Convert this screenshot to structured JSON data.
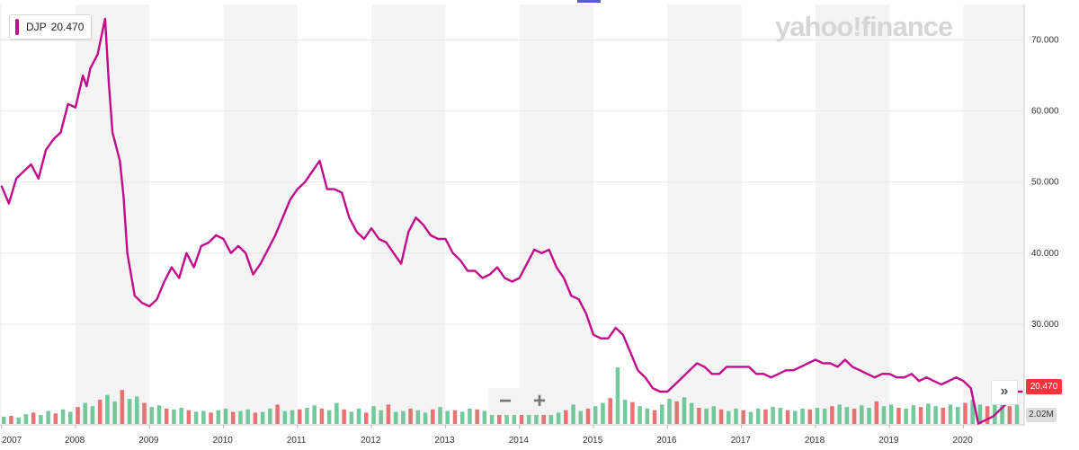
{
  "legend": {
    "symbol": "DJP",
    "value": "20.470",
    "color": "#c20a8c"
  },
  "brand": {
    "text": "yahoo!finance"
  },
  "zoom": {
    "minus": "−",
    "plus": "+"
  },
  "price_label": "20.470",
  "volume_label": "2.02M",
  "scroll_button": "»",
  "chart_data": {
    "type": "line",
    "title": "",
    "xlabel": "",
    "ylabel": "",
    "ylim": [
      20.0,
      75.0
    ],
    "xlim": [
      2006.98,
      2020.82
    ],
    "x_ticks": [
      2007,
      2008,
      2009,
      2010,
      2011,
      2012,
      2013,
      2014,
      2015,
      2016,
      2017,
      2018,
      2019,
      2020
    ],
    "x_tick_labels": [
      "2007",
      "2008",
      "2009",
      "2010",
      "2011",
      "2012",
      "2013",
      "2014",
      "2015",
      "2016",
      "2017",
      "2018",
      "2019",
      "2020"
    ],
    "y_ticks": [
      30,
      40,
      50,
      60,
      70
    ],
    "y_tick_labels": [
      "30.000",
      "40.000",
      "50.000",
      "60.000",
      "70.000"
    ],
    "grid": true,
    "legend_position": "top-left",
    "series": [
      {
        "name": "DJP",
        "color": "#c20a8c",
        "x": [
          2007.0,
          2007.1,
          2007.2,
          2007.3,
          2007.4,
          2007.5,
          2007.6,
          2007.7,
          2007.8,
          2007.9,
          2008.0,
          2008.1,
          2008.15,
          2008.2,
          2008.3,
          2008.4,
          2008.45,
          2008.5,
          2008.6,
          2008.65,
          2008.7,
          2008.8,
          2008.9,
          2009.0,
          2009.1,
          2009.2,
          2009.3,
          2009.4,
          2009.5,
          2009.6,
          2009.7,
          2009.8,
          2009.9,
          2010.0,
          2010.1,
          2010.2,
          2010.3,
          2010.4,
          2010.5,
          2010.6,
          2010.7,
          2010.8,
          2010.9,
          2011.0,
          2011.1,
          2011.2,
          2011.3,
          2011.4,
          2011.5,
          2011.6,
          2011.7,
          2011.8,
          2011.9,
          2012.0,
          2012.1,
          2012.2,
          2012.3,
          2012.4,
          2012.5,
          2012.6,
          2012.7,
          2012.8,
          2012.9,
          2013.0,
          2013.1,
          2013.2,
          2013.3,
          2013.4,
          2013.5,
          2013.6,
          2013.7,
          2013.8,
          2013.9,
          2014.0,
          2014.1,
          2014.2,
          2014.3,
          2014.4,
          2014.5,
          2014.6,
          2014.7,
          2014.8,
          2014.9,
          2015.0,
          2015.1,
          2015.2,
          2015.3,
          2015.4,
          2015.5,
          2015.6,
          2015.7,
          2015.8,
          2015.9,
          2016.0,
          2016.1,
          2016.2,
          2016.3,
          2016.4,
          2016.5,
          2016.6,
          2016.7,
          2016.8,
          2016.9,
          2017.0,
          2017.1,
          2017.2,
          2017.3,
          2017.4,
          2017.5,
          2017.6,
          2017.7,
          2017.8,
          2017.9,
          2018.0,
          2018.1,
          2018.2,
          2018.3,
          2018.4,
          2018.5,
          2018.6,
          2018.7,
          2018.8,
          2018.9,
          2019.0,
          2019.1,
          2019.2,
          2019.3,
          2019.4,
          2019.5,
          2019.6,
          2019.7,
          2019.8,
          2019.9,
          2020.0,
          2020.1,
          2020.15,
          2020.2,
          2020.3,
          2020.4,
          2020.5,
          2020.6,
          2020.7,
          2020.8
        ],
        "y": [
          49.5,
          47.0,
          50.5,
          51.5,
          52.5,
          50.5,
          54.5,
          56.0,
          57.0,
          61.0,
          60.5,
          65.0,
          63.5,
          66.0,
          68.0,
          73.0,
          64.0,
          57.0,
          53.0,
          48.0,
          40.0,
          34.0,
          33.0,
          32.5,
          33.5,
          36.0,
          38.0,
          36.5,
          40.0,
          38.0,
          41.0,
          41.5,
          42.5,
          42.0,
          40.0,
          41.0,
          40.0,
          37.0,
          38.5,
          40.5,
          42.5,
          45.0,
          47.5,
          49.0,
          50.0,
          51.5,
          53.0,
          49.0,
          49.0,
          48.5,
          45.0,
          43.0,
          42.0,
          43.5,
          42.0,
          41.5,
          40.0,
          38.5,
          43.0,
          45.0,
          44.0,
          42.5,
          42.0,
          42.0,
          40.0,
          39.0,
          37.5,
          37.5,
          36.5,
          37.0,
          38.0,
          36.5,
          36.0,
          36.5,
          38.5,
          40.5,
          40.0,
          40.5,
          38.0,
          36.5,
          34.0,
          33.5,
          31.5,
          28.5,
          28.0,
          28.0,
          29.5,
          28.5,
          26.0,
          23.5,
          22.5,
          21.0,
          20.5,
          20.5,
          21.5,
          22.5,
          23.5,
          24.5,
          24.0,
          23.0,
          23.0,
          24.0,
          24.0,
          24.0,
          24.0,
          23.0,
          23.0,
          22.5,
          23.0,
          23.5,
          23.5,
          24.0,
          24.5,
          25.0,
          24.5,
          24.5,
          24.0,
          25.0,
          24.0,
          23.5,
          23.0,
          22.5,
          23.0,
          23.0,
          22.5,
          22.5,
          23.0,
          22.0,
          22.5,
          22.0,
          21.5,
          22.0,
          22.5,
          22.0,
          21.0,
          18.5,
          16.0,
          16.5,
          17.0,
          18.0,
          19.0,
          20.5,
          20.5
        ]
      }
    ],
    "volume_bars": {
      "color_up": "#5bbf8a",
      "color_down": "#e35a5a",
      "ylim": [
        0,
        8.0
      ],
      "values": [
        0.9,
        1.0,
        0.8,
        1.2,
        1.4,
        1.1,
        1.6,
        1.3,
        1.8,
        1.5,
        2.1,
        2.6,
        2.2,
        3.0,
        3.6,
        2.8,
        4.2,
        3.1,
        3.4,
        2.6,
        2.1,
        2.3,
        1.9,
        1.8,
        2.0,
        1.7,
        1.5,
        1.6,
        1.4,
        1.7,
        1.9,
        1.5,
        1.6,
        1.8,
        1.4,
        1.5,
        1.9,
        2.4,
        1.6,
        1.7,
        1.8,
        2.0,
        2.3,
        1.9,
        1.7,
        2.6,
        1.8,
        1.5,
        1.9,
        1.4,
        2.2,
        1.7,
        2.4,
        1.5,
        1.6,
        1.9,
        1.7,
        1.4,
        1.8,
        2.1,
        1.6,
        1.7,
        1.5,
        1.9,
        1.8,
        1.6,
        1.5,
        1.4,
        1.7,
        1.9,
        2.0,
        1.6,
        1.8,
        1.7,
        1.5,
        1.4,
        1.7,
        2.4,
        1.6,
        1.9,
        2.2,
        2.6,
        3.2,
        7.0,
        3.0,
        2.7,
        2.2,
        1.9,
        1.7,
        2.4,
        3.1,
        2.8,
        3.3,
        2.6,
        2.0,
        1.9,
        2.2,
        1.8,
        1.6,
        1.9,
        1.7,
        1.5,
        1.9,
        1.8,
        2.1,
        2.0,
        1.7,
        1.6,
        1.9,
        1.8,
        2.0,
        1.9,
        2.2,
        2.4,
        2.1,
        1.9,
        2.3,
        2.0,
        2.8,
        2.2,
        2.4,
        2.0,
        1.9,
        2.3,
        2.1,
        2.5,
        2.2,
        2.0,
        2.4,
        2.1,
        2.6,
        3.0,
        2.4,
        2.2,
        2.8,
        2.5,
        2.2,
        2.4
      ]
    }
  }
}
